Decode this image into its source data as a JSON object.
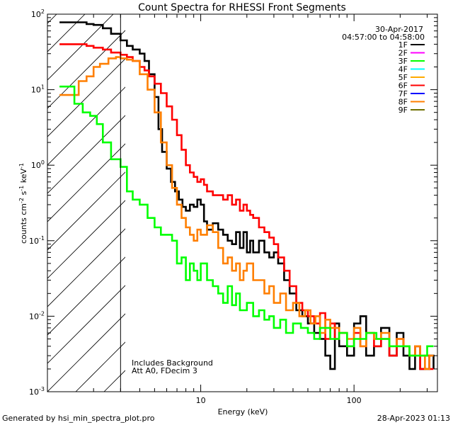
{
  "page": {
    "footer_left": "Generated by hsi_min_spectra_plot.pro",
    "footer_right": "28-Apr-2023 01:13"
  },
  "chart_data": {
    "type": "line",
    "title": "Count Spectra for RHESSI Front Segments",
    "xlabel": "Energy (keV)",
    "ylabel_main": "counts cm",
    "ylabel_exp1": "-2",
    "ylabel_mid": " s",
    "ylabel_exp2": "-1",
    "ylabel_end": " keV",
    "ylabel_exp3": "-1",
    "xscale": "log",
    "yscale": "log",
    "xlim": [
      1.0,
      350
    ],
    "ylim": [
      0.001,
      100
    ],
    "x_ticks": [
      {
        "value": 10,
        "label": "10"
      },
      {
        "value": 100,
        "label": "100"
      }
    ],
    "y_ticks": [
      {
        "value": 100,
        "base": "10",
        "exp": "2"
      },
      {
        "value": 10,
        "base": "10",
        "exp": "1"
      },
      {
        "value": 1,
        "base": "10",
        "exp": "0"
      },
      {
        "value": 0.1,
        "base": "10",
        "exp": "-1"
      },
      {
        "value": 0.01,
        "base": "10",
        "exp": "-2"
      },
      {
        "value": 0.001,
        "base": "10",
        "exp": "-3"
      }
    ],
    "date": "30-Apr-2017",
    "time_range": "04:57:00 to 04:58:00",
    "annotations": [
      "Includes Background",
      "Att A0, FDecim 3"
    ],
    "hatched_region_max_kev": 3.0,
    "legend": [
      {
        "label": "1F",
        "color": "#000000"
      },
      {
        "label": "2F",
        "color": "#ff00ff"
      },
      {
        "label": "3F",
        "color": "#00ff00"
      },
      {
        "label": "4F",
        "color": "#00ffff"
      },
      {
        "label": "5F",
        "color": "#ffaa00"
      },
      {
        "label": "6F",
        "color": "#ff0000"
      },
      {
        "label": "7F",
        "color": "#0000ff"
      },
      {
        "label": "8F",
        "color": "#ff7f00"
      },
      {
        "label": "9F",
        "color": "#707000"
      }
    ],
    "series": [
      {
        "name": "1F",
        "color": "#000000",
        "points": [
          [
            1.2,
            78
          ],
          [
            1.6,
            78
          ],
          [
            1.8,
            74
          ],
          [
            2.0,
            72
          ],
          [
            2.3,
            65
          ],
          [
            2.6,
            55
          ],
          [
            3.0,
            45
          ],
          [
            3.3,
            38
          ],
          [
            3.6,
            34
          ],
          [
            4.0,
            30
          ],
          [
            4.3,
            24
          ],
          [
            4.6,
            16
          ],
          [
            5.0,
            8
          ],
          [
            5.3,
            3
          ],
          [
            5.6,
            1.5
          ],
          [
            6.0,
            0.9
          ],
          [
            6.4,
            0.6
          ],
          [
            6.8,
            0.45
          ],
          [
            7.2,
            0.35
          ],
          [
            7.6,
            0.28
          ],
          [
            8.0,
            0.25
          ],
          [
            8.5,
            0.3
          ],
          [
            9.0,
            0.28
          ],
          [
            9.5,
            0.35
          ],
          [
            10.0,
            0.3
          ],
          [
            10.5,
            0.18
          ],
          [
            11.0,
            0.14
          ],
          [
            12.0,
            0.17
          ],
          [
            13.0,
            0.14
          ],
          [
            14.0,
            0.12
          ],
          [
            15.0,
            0.1
          ],
          [
            16.0,
            0.09
          ],
          [
            17.0,
            0.13
          ],
          [
            18.0,
            0.08
          ],
          [
            19.0,
            0.13
          ],
          [
            20.0,
            0.07
          ],
          [
            21.0,
            0.1
          ],
          [
            22.0,
            0.07
          ],
          [
            24.0,
            0.1
          ],
          [
            26.0,
            0.07
          ],
          [
            28.0,
            0.06
          ],
          [
            30.0,
            0.07
          ],
          [
            32.0,
            0.05
          ],
          [
            35.0,
            0.03
          ],
          [
            38.0,
            0.02
          ],
          [
            42.0,
            0.012
          ],
          [
            46.0,
            0.01
          ],
          [
            50.0,
            0.008
          ],
          [
            55.0,
            0.006
          ],
          [
            60.0,
            0.005
          ],
          [
            65.0,
            0.003
          ],
          [
            70.0,
            0.002
          ],
          [
            75.0,
            0.008
          ],
          [
            80.0,
            0.004
          ],
          [
            90.0,
            0.003
          ],
          [
            100.0,
            0.008
          ],
          [
            110.0,
            0.01
          ],
          [
            120.0,
            0.003
          ],
          [
            135.0,
            0.004
          ],
          [
            150.0,
            0.007
          ],
          [
            170.0,
            0.003
          ],
          [
            190.0,
            0.006
          ],
          [
            210.0,
            0.003
          ],
          [
            230.0,
            0.002
          ],
          [
            250.0,
            0.004
          ],
          [
            270.0,
            0.002
          ],
          [
            290.0,
            0.002
          ],
          [
            310.0,
            0.003
          ],
          [
            330.0,
            0.002
          ]
        ]
      },
      {
        "name": "6F",
        "color": "#ff0000",
        "points": [
          [
            1.2,
            40
          ],
          [
            1.5,
            40
          ],
          [
            1.8,
            38
          ],
          [
            2.0,
            36
          ],
          [
            2.3,
            34
          ],
          [
            2.6,
            31
          ],
          [
            3.0,
            29
          ],
          [
            3.3,
            27
          ],
          [
            3.6,
            24
          ],
          [
            4.0,
            20
          ],
          [
            4.3,
            18
          ],
          [
            4.6,
            15
          ],
          [
            5.0,
            12
          ],
          [
            5.5,
            9
          ],
          [
            6.0,
            6
          ],
          [
            6.5,
            4
          ],
          [
            7.0,
            2.5
          ],
          [
            7.5,
            1.6
          ],
          [
            8.0,
            1.0
          ],
          [
            8.5,
            0.8
          ],
          [
            9.0,
            0.7
          ],
          [
            9.5,
            0.6
          ],
          [
            10.0,
            0.65
          ],
          [
            10.5,
            0.55
          ],
          [
            11.0,
            0.45
          ],
          [
            12.0,
            0.4
          ],
          [
            13.0,
            0.4
          ],
          [
            14.0,
            0.35
          ],
          [
            15.0,
            0.4
          ],
          [
            16.0,
            0.3
          ],
          [
            17.0,
            0.35
          ],
          [
            18.0,
            0.25
          ],
          [
            19.0,
            0.3
          ],
          [
            20.0,
            0.25
          ],
          [
            21.0,
            0.22
          ],
          [
            22.0,
            0.2
          ],
          [
            24.0,
            0.15
          ],
          [
            26.0,
            0.13
          ],
          [
            28.0,
            0.11
          ],
          [
            30.0,
            0.09
          ],
          [
            32.0,
            0.06
          ],
          [
            35.0,
            0.04
          ],
          [
            38.0,
            0.025
          ],
          [
            42.0,
            0.015
          ],
          [
            46.0,
            0.012
          ],
          [
            50.0,
            0.01
          ],
          [
            55.0,
            0.008
          ],
          [
            60.0,
            0.011
          ],
          [
            65.0,
            0.005
          ],
          [
            70.0,
            0.008
          ],
          [
            75.0,
            0.005
          ],
          [
            80.0,
            0.006
          ],
          [
            90.0,
            0.004
          ],
          [
            100.0,
            0.006
          ],
          [
            110.0,
            0.004
          ],
          [
            120.0,
            0.006
          ],
          [
            135.0,
            0.004
          ],
          [
            150.0,
            0.005
          ],
          [
            170.0,
            0.003
          ],
          [
            190.0,
            0.005
          ],
          [
            210.0,
            0.004
          ],
          [
            230.0,
            0.003
          ],
          [
            250.0,
            0.004
          ],
          [
            270.0,
            0.002
          ],
          [
            290.0,
            0.003
          ],
          [
            310.0,
            0.002
          ],
          [
            330.0,
            0.002
          ]
        ]
      },
      {
        "name": "8F",
        "color": "#ff7f00",
        "points": [
          [
            1.2,
            8.5
          ],
          [
            1.4,
            8.5
          ],
          [
            1.6,
            13
          ],
          [
            1.8,
            15
          ],
          [
            2.0,
            20
          ],
          [
            2.2,
            22
          ],
          [
            2.5,
            26
          ],
          [
            2.8,
            27
          ],
          [
            3.0,
            26
          ],
          [
            3.3,
            25
          ],
          [
            3.6,
            24
          ],
          [
            4.0,
            16
          ],
          [
            4.5,
            10
          ],
          [
            5.0,
            5
          ],
          [
            5.5,
            2.0
          ],
          [
            6.0,
            1.0
          ],
          [
            6.5,
            0.5
          ],
          [
            7.0,
            0.3
          ],
          [
            7.5,
            0.2
          ],
          [
            8.0,
            0.15
          ],
          [
            8.5,
            0.12
          ],
          [
            9.0,
            0.1
          ],
          [
            9.5,
            0.14
          ],
          [
            10.0,
            0.12
          ],
          [
            11.0,
            0.16
          ],
          [
            12.0,
            0.13
          ],
          [
            13.0,
            0.08
          ],
          [
            14.0,
            0.05
          ],
          [
            15.0,
            0.06
          ],
          [
            16.0,
            0.04
          ],
          [
            17.0,
            0.05
          ],
          [
            18.0,
            0.03
          ],
          [
            19.0,
            0.04
          ],
          [
            20.0,
            0.05
          ],
          [
            22.0,
            0.03
          ],
          [
            24.0,
            0.03
          ],
          [
            26.0,
            0.02
          ],
          [
            28.0,
            0.025
          ],
          [
            30.0,
            0.015
          ],
          [
            33.0,
            0.02
          ],
          [
            36.0,
            0.012
          ],
          [
            40.0,
            0.015
          ],
          [
            44.0,
            0.01
          ],
          [
            48.0,
            0.012
          ],
          [
            52.0,
            0.008
          ],
          [
            56.0,
            0.01
          ],
          [
            60.0,
            0.006
          ],
          [
            65.0,
            0.009
          ],
          [
            70.0,
            0.007
          ],
          [
            80.0,
            0.006
          ],
          [
            90.0,
            0.005
          ],
          [
            100.0,
            0.007
          ],
          [
            110.0,
            0.004
          ],
          [
            120.0,
            0.006
          ],
          [
            135.0,
            0.005
          ],
          [
            150.0,
            0.006
          ],
          [
            170.0,
            0.004
          ],
          [
            190.0,
            0.005
          ],
          [
            210.0,
            0.004
          ],
          [
            230.0,
            0.003
          ],
          [
            250.0,
            0.004
          ],
          [
            270.0,
            0.003
          ],
          [
            290.0,
            0.002
          ],
          [
            310.0,
            0.003
          ],
          [
            330.0,
            0.003
          ]
        ]
      },
      {
        "name": "3F",
        "color": "#00ff00",
        "points": [
          [
            1.2,
            11
          ],
          [
            1.4,
            11
          ],
          [
            1.5,
            6.5
          ],
          [
            1.7,
            5
          ],
          [
            1.9,
            4.5
          ],
          [
            2.1,
            3.5
          ],
          [
            2.3,
            2.0
          ],
          [
            2.6,
            1.2
          ],
          [
            3.0,
            0.95
          ],
          [
            3.3,
            0.45
          ],
          [
            3.6,
            0.35
          ],
          [
            4.0,
            0.3
          ],
          [
            4.5,
            0.2
          ],
          [
            5.0,
            0.15
          ],
          [
            5.5,
            0.12
          ],
          [
            6.0,
            0.12
          ],
          [
            6.5,
            0.1
          ],
          [
            7.0,
            0.05
          ],
          [
            7.5,
            0.06
          ],
          [
            8.0,
            0.03
          ],
          [
            8.5,
            0.05
          ],
          [
            9.0,
            0.04
          ],
          [
            9.5,
            0.03
          ],
          [
            10.0,
            0.05
          ],
          [
            11.0,
            0.03
          ],
          [
            12.0,
            0.025
          ],
          [
            13.0,
            0.02
          ],
          [
            14.0,
            0.015
          ],
          [
            15.0,
            0.025
          ],
          [
            16.0,
            0.014
          ],
          [
            17.0,
            0.02
          ],
          [
            18.0,
            0.012
          ],
          [
            20.0,
            0.015
          ],
          [
            22.0,
            0.01
          ],
          [
            24.0,
            0.012
          ],
          [
            26.0,
            0.009
          ],
          [
            28.0,
            0.01
          ],
          [
            30.0,
            0.007
          ],
          [
            33.0,
            0.009
          ],
          [
            36.0,
            0.006
          ],
          [
            40.0,
            0.008
          ],
          [
            45.0,
            0.007
          ],
          [
            50.0,
            0.006
          ],
          [
            55.0,
            0.005
          ],
          [
            60.0,
            0.007
          ],
          [
            70.0,
            0.005
          ],
          [
            80.0,
            0.006
          ],
          [
            90.0,
            0.004
          ],
          [
            100.0,
            0.005
          ],
          [
            120.0,
            0.006
          ],
          [
            140.0,
            0.005
          ],
          [
            170.0,
            0.004
          ],
          [
            200.0,
            0.004
          ],
          [
            230.0,
            0.003
          ],
          [
            260.0,
            0.003
          ],
          [
            300.0,
            0.004
          ],
          [
            330.0,
            0.004
          ]
        ]
      }
    ]
  }
}
